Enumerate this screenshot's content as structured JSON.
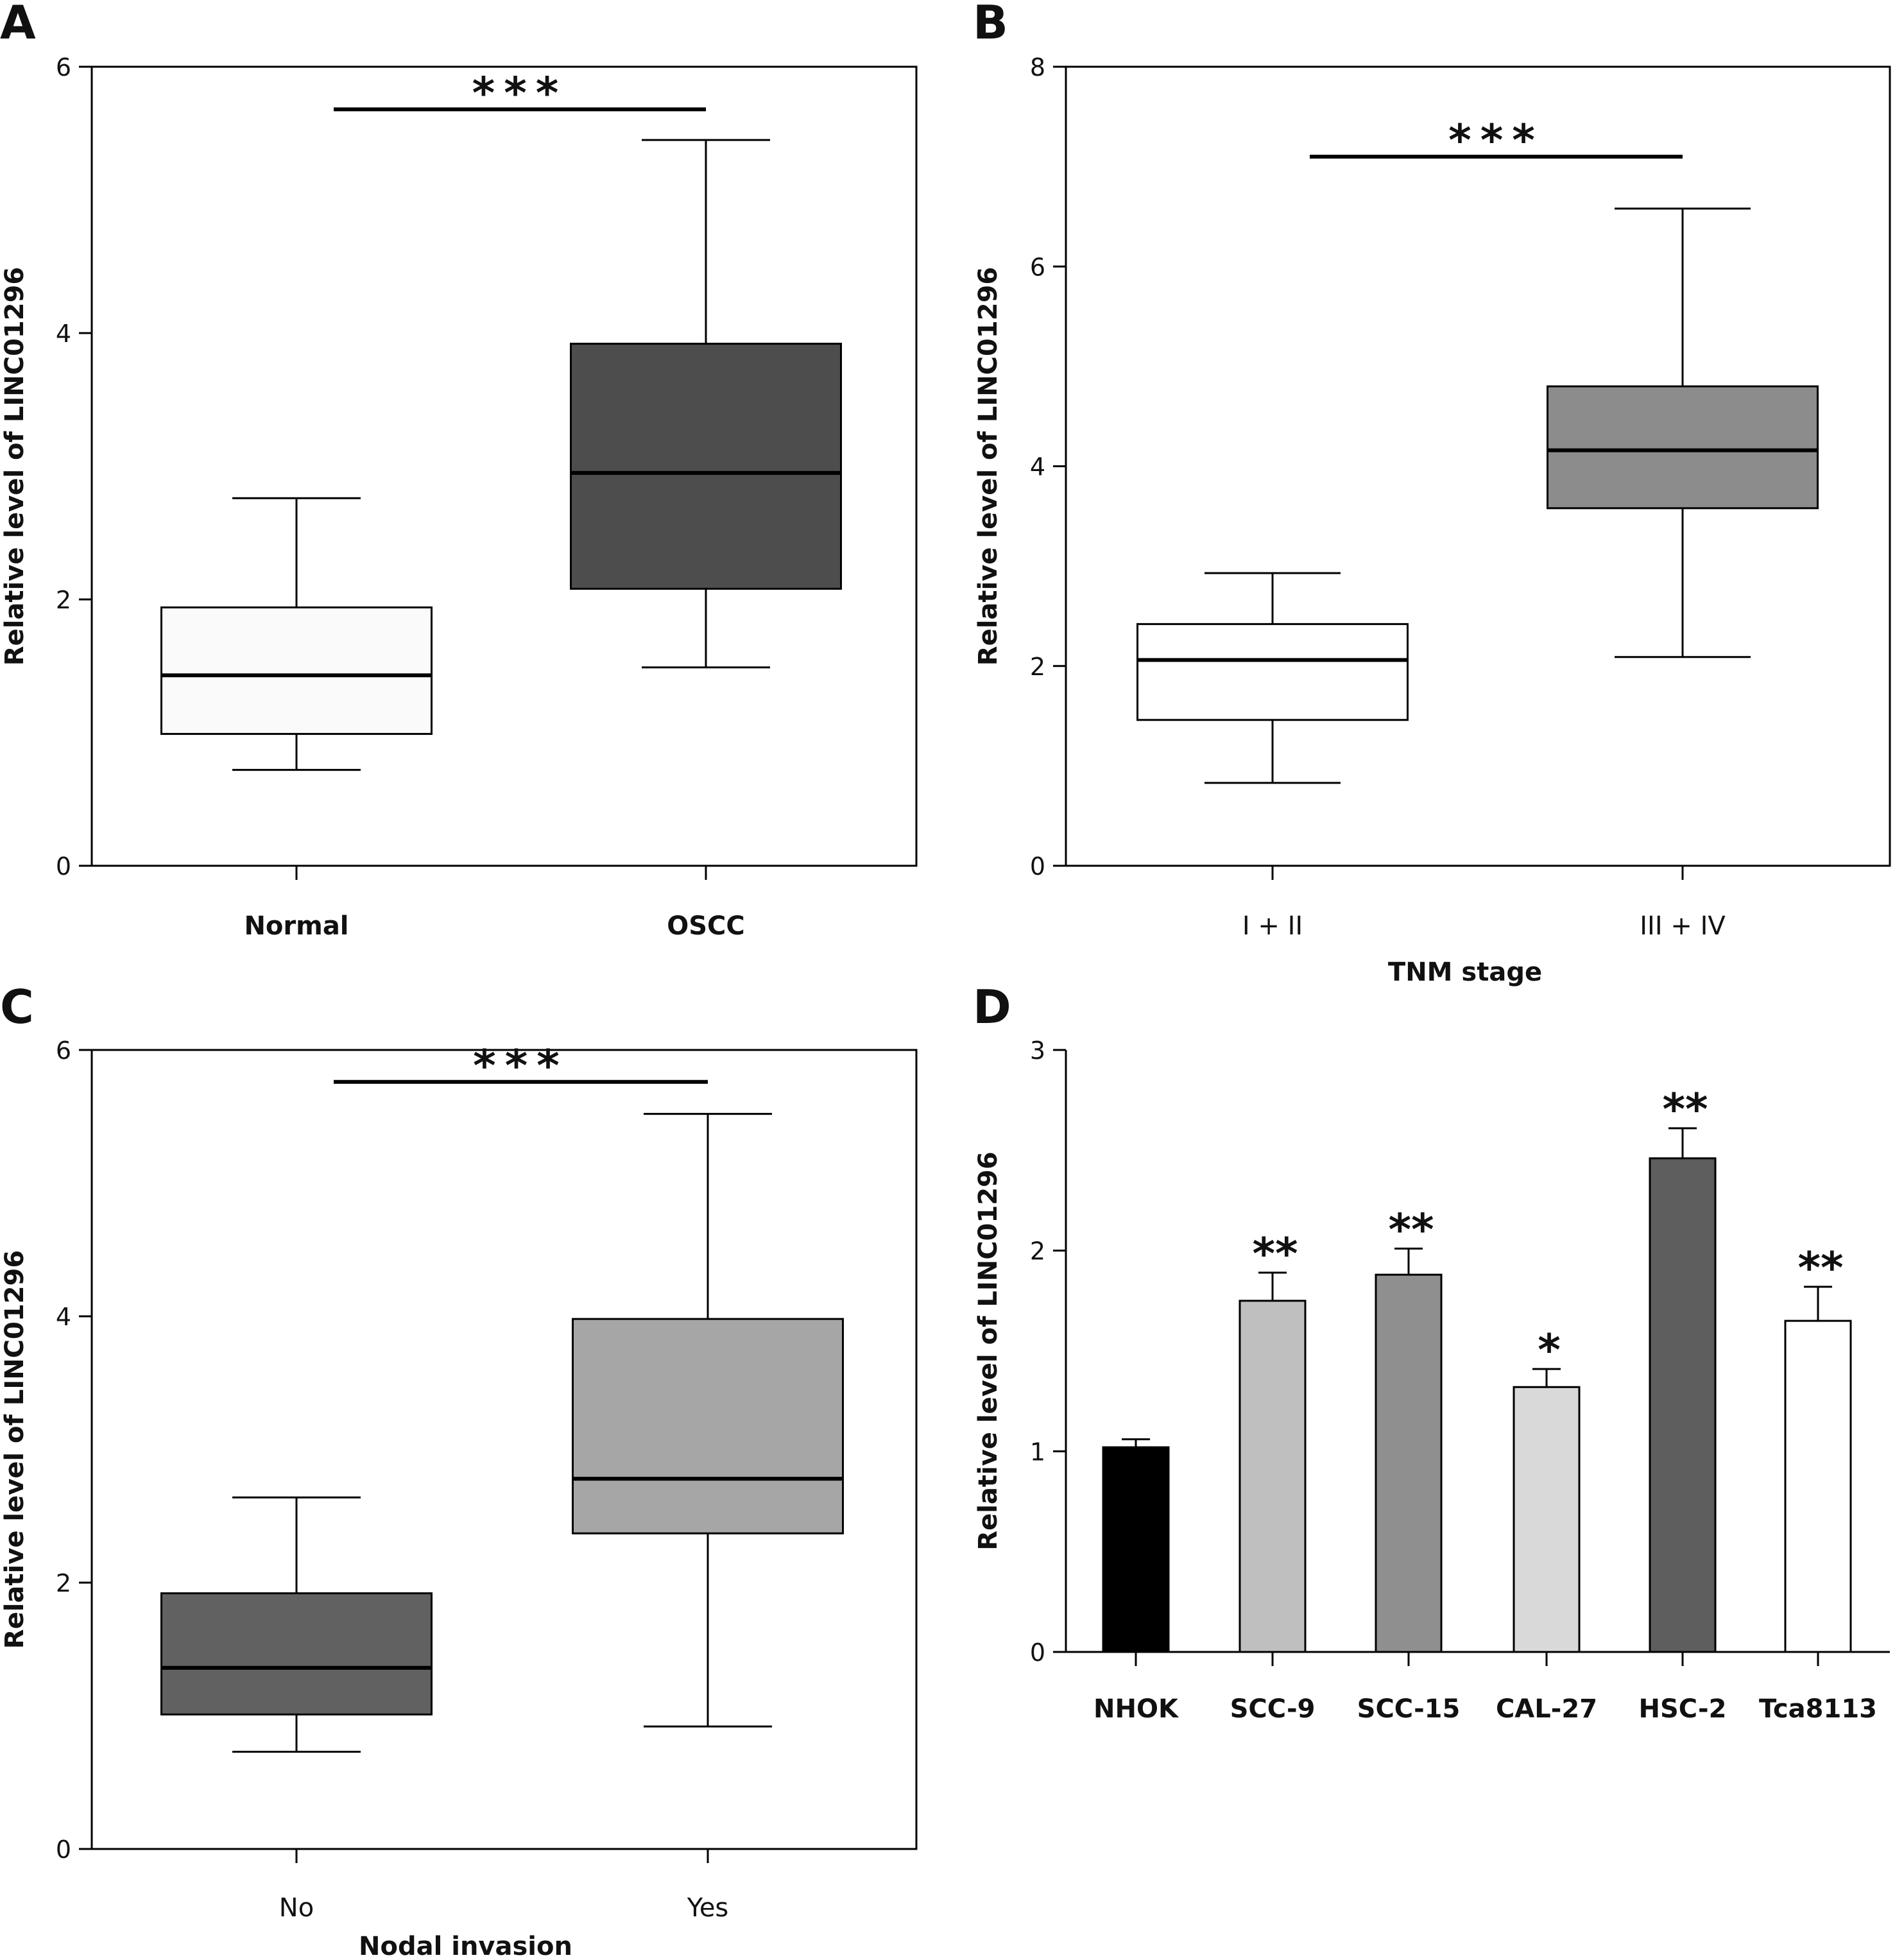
{
  "chart_data": [
    {
      "panel": "A",
      "type": "box",
      "ylabel": "Relative level of LINC01296",
      "xlabel": "",
      "ylim": [
        0,
        6
      ],
      "yticks": [
        0,
        2,
        4,
        6
      ],
      "bold_categories": true,
      "categories": [
        "Normal",
        "OSCC"
      ],
      "boxes": [
        {
          "category": "Normal",
          "min": 0.72,
          "q1": 0.99,
          "median": 1.43,
          "q3": 1.94,
          "max": 2.76,
          "color": "#fafafa"
        },
        {
          "category": "OSCC",
          "min": 1.49,
          "q1": 2.08,
          "median": 2.95,
          "q3": 3.92,
          "max": 5.45,
          "color": "#4d4d4d"
        }
      ],
      "significance": {
        "label": "***",
        "y": 5.68,
        "from": 0,
        "to": 1
      }
    },
    {
      "panel": "B",
      "type": "box",
      "ylabel": "Relative level of LINC01296",
      "xlabel": "TNM stage",
      "ylim": [
        0,
        8
      ],
      "yticks": [
        0,
        2,
        4,
        6,
        8
      ],
      "bold_categories": false,
      "categories": [
        "I + II",
        "III + IV"
      ],
      "boxes": [
        {
          "category": "I + II",
          "min": 0.83,
          "q1": 1.46,
          "median": 2.06,
          "q3": 2.42,
          "max": 2.93,
          "color": "#ffffff"
        },
        {
          "category": "III + IV",
          "min": 2.09,
          "q1": 3.58,
          "median": 4.16,
          "q3": 4.8,
          "max": 6.58,
          "color": "#8c8c8c"
        }
      ],
      "significance": {
        "label": "***",
        "y": 7.1,
        "from": 0,
        "to": 1
      }
    },
    {
      "panel": "C",
      "type": "box",
      "ylabel": "Relative level of LINC01296",
      "xlabel": "Nodal invasion",
      "ylim": [
        0,
        6
      ],
      "yticks": [
        0,
        2,
        4,
        6
      ],
      "bold_categories": false,
      "categories": [
        "No",
        "Yes"
      ],
      "boxes": [
        {
          "category": "No",
          "min": 0.73,
          "q1": 1.01,
          "median": 1.36,
          "q3": 1.92,
          "max": 2.64,
          "color": "#616161"
        },
        {
          "category": "Yes",
          "min": 0.92,
          "q1": 2.37,
          "median": 2.78,
          "q3": 3.98,
          "max": 5.52,
          "color": "#a6a6a6"
        }
      ],
      "significance": {
        "label": "***",
        "y": 5.76,
        "from": 0,
        "to": 1
      }
    },
    {
      "panel": "D",
      "type": "bar",
      "ylabel": "Relative level of LINC01296",
      "xlabel": "",
      "ylim": [
        0,
        3
      ],
      "yticks": [
        0,
        1,
        2,
        3
      ],
      "bold_categories": true,
      "categories": [
        "NHOK",
        "SCC-9",
        "SCC-15",
        "CAL-27",
        "HSC-2",
        "Tca8113"
      ],
      "bars": [
        {
          "category": "NHOK",
          "value": 1.02,
          "error": 0.04,
          "color": "#000000",
          "sig": ""
        },
        {
          "category": "SCC-9",
          "value": 1.75,
          "error": 0.14,
          "color": "#bfbfbf",
          "sig": "**"
        },
        {
          "category": "SCC-15",
          "value": 1.88,
          "error": 0.13,
          "color": "#8f8f8f",
          "sig": "**"
        },
        {
          "category": "CAL-27",
          "value": 1.32,
          "error": 0.09,
          "color": "#d9d9d9",
          "sig": "*"
        },
        {
          "category": "HSC-2",
          "value": 2.46,
          "error": 0.15,
          "color": "#5e5e5e",
          "sig": "**"
        },
        {
          "category": "Tca8113",
          "value": 1.65,
          "error": 0.17,
          "color": "#ffffff",
          "sig": "**"
        }
      ]
    }
  ],
  "panel_labels": [
    "A",
    "B",
    "C",
    "D"
  ]
}
